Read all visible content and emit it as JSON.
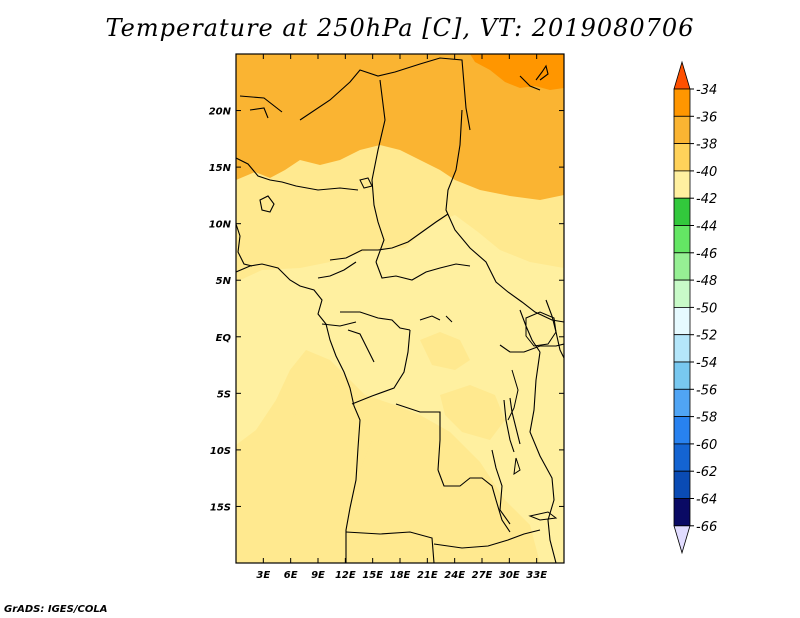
{
  "title": "Temperature at 250hPa [C], VT: 2019080706",
  "credit": "GrADS: IGES/COLA",
  "map": {
    "lon_range": [
      0,
      36
    ],
    "lat_range": [
      -20,
      25
    ],
    "x_ticks": [
      "3E",
      "6E",
      "9E",
      "12E",
      "15E",
      "18E",
      "21E",
      "24E",
      "27E",
      "30E",
      "33E"
    ],
    "x_tick_values": [
      3,
      6,
      9,
      12,
      15,
      18,
      21,
      24,
      27,
      30,
      33
    ],
    "y_ticks": [
      "15S",
      "10S",
      "5S",
      "EQ",
      "5N",
      "10N",
      "15N",
      "20N"
    ],
    "y_tick_values": [
      -15,
      -10,
      -5,
      0,
      5,
      10,
      15,
      20
    ],
    "base_fill_color": "#FFE98F"
  },
  "colorbar": {
    "labels": [
      "-34",
      "-36",
      "-38",
      "-40",
      "-42",
      "-44",
      "-46",
      "-48",
      "-50",
      "-52",
      "-54",
      "-56",
      "-58",
      "-60",
      "-62",
      "-64",
      "-66"
    ],
    "colors": [
      "#FF5000",
      "#FF9600",
      "#FAB432",
      "#FFD25A",
      "#FFF0A0",
      "#32C83C",
      "#64E664",
      "#96F094",
      "#C8FAC8",
      "#E6FAFF",
      "#B4E6FA",
      "#78C8F0",
      "#50A5F5",
      "#2882F0",
      "#1464D2",
      "#0A4BB4",
      "#0A0A64",
      "#E1DCFF"
    ]
  }
}
